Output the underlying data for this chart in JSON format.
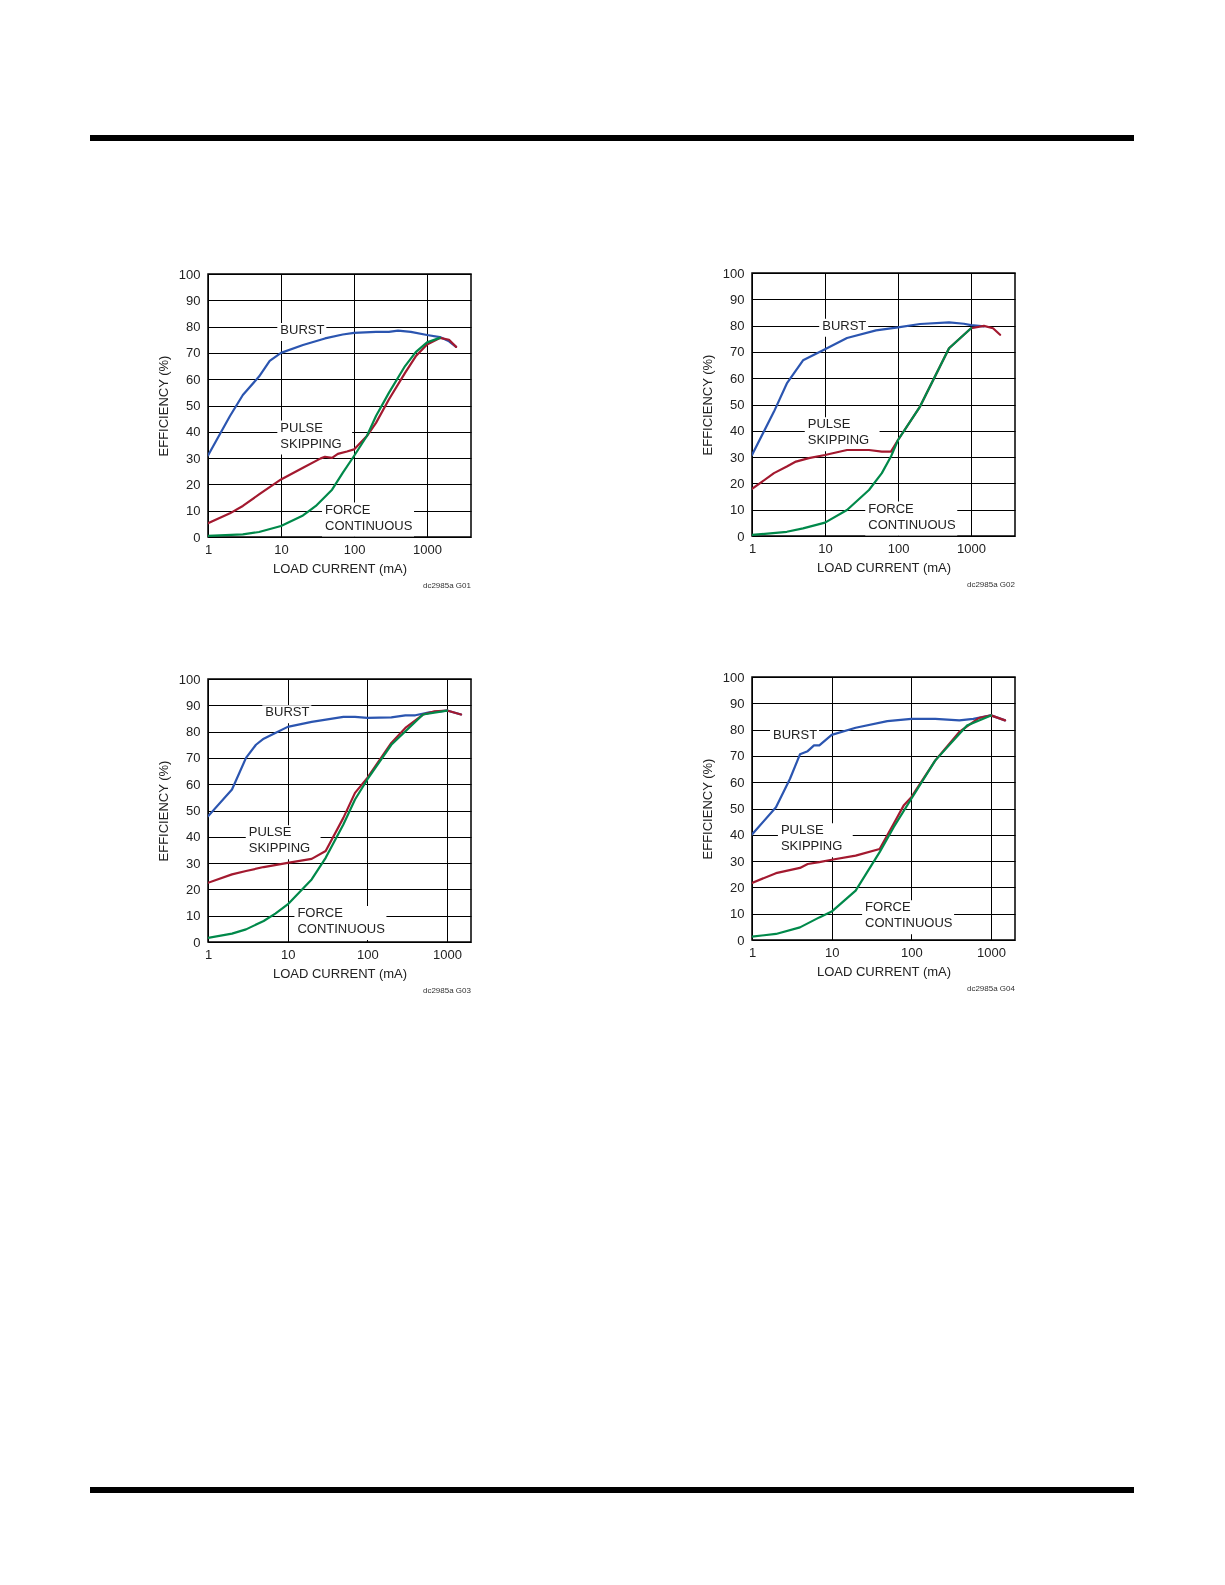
{
  "chart_data": [
    {
      "type": "line",
      "xlabel": "LOAD CURRENT  (mA)",
      "ylabel": "EFFICIENCY (%)",
      "log": "x",
      "grid": true,
      "xlim": [
        1,
        4000
      ],
      "xticks": [
        1,
        10,
        100,
        1000
      ],
      "ylim": [
        0,
        100
      ],
      "yticks": [
        0,
        10,
        20,
        30,
        40,
        50,
        60,
        70,
        80,
        90,
        100
      ],
      "annotations": [
        "dc2985a G01"
      ],
      "series": [
        {
          "name": "BURST",
          "color": "#2b55b0",
          "x": [
            1,
            2,
            3,
            5,
            7,
            10,
            20,
            40,
            70,
            100,
            200,
            300,
            400,
            600,
            1000,
            1500,
            2000,
            2500
          ],
          "values": [
            31,
            46,
            54,
            61,
            67,
            70,
            73,
            75.5,
            77,
            77.6,
            78,
            78,
            78.5,
            78,
            76.8,
            76,
            74.4,
            72.3
          ]
        },
        {
          "name": "PULSE SKIPPING",
          "color": "#a3192f",
          "x": [
            1,
            2,
            3,
            5,
            10,
            20,
            35,
            40,
            50,
            60,
            80,
            100,
            150,
            200,
            300,
            500,
            700,
            1000,
            1500,
            2000,
            2500
          ],
          "values": [
            5.2,
            9,
            11.8,
            16.2,
            21.9,
            26.3,
            29.9,
            30.5,
            30.1,
            31.6,
            32.5,
            33.3,
            38.4,
            43.4,
            52.3,
            62.4,
            68.7,
            73.2,
            75.7,
            75,
            72.3
          ]
        },
        {
          "name": "FORCE CONTINUOUS",
          "color": "#00894a",
          "x": [
            1,
            3,
            5,
            10,
            20,
            30,
            50,
            70,
            100,
            150,
            200,
            300,
            500,
            700,
            1000,
            1500
          ],
          "values": [
            0.4,
            1,
            1.9,
            4.2,
            8.2,
            11.8,
            18,
            24.4,
            30.8,
            38.4,
            46,
            54.8,
            65,
            70.3,
            74,
            75.7
          ]
        }
      ]
    },
    {
      "type": "line",
      "xlabel": "LOAD CURRENT  (mA)",
      "ylabel": "EFFICIENCY (%)",
      "log": "x",
      "grid": true,
      "xlim": [
        1,
        4000
      ],
      "xticks": [
        1,
        10,
        100,
        1000
      ],
      "ylim": [
        0,
        100
      ],
      "yticks": [
        0,
        10,
        20,
        30,
        40,
        50,
        60,
        70,
        80,
        90,
        100
      ],
      "annotations": [
        "dc2985a G02"
      ],
      "series": [
        {
          "name": "BURST",
          "color": "#2b55b0",
          "x": [
            1,
            2,
            3,
            5,
            10,
            20,
            50,
            100,
            200,
            500,
            800,
            1000,
            1500
          ],
          "values": [
            30.8,
            47.3,
            58,
            66.8,
            71,
            75.3,
            78.2,
            79.3,
            80.6,
            81.2,
            80.7,
            80.2,
            79.7
          ]
        },
        {
          "name": "PULSE SKIPPING",
          "color": "#a3192f",
          "x": [
            1,
            2,
            3,
            4,
            6,
            10,
            20,
            40,
            60,
            80,
            100,
            200,
            500,
            1000,
            1500,
            2000,
            2500
          ],
          "values": [
            17.9,
            23.9,
            26.4,
            28.3,
            29.6,
            30.8,
            32.7,
            32.7,
            32.1,
            32.1,
            36.5,
            49.2,
            71.4,
            79,
            79.9,
            79,
            76.5
          ]
        },
        {
          "name": "FORCE CONTINUOUS",
          "color": "#00894a",
          "x": [
            1,
            3,
            5,
            10,
            20,
            40,
            60,
            80,
            100,
            200,
            500,
            1000
          ],
          "values": [
            0.4,
            1.6,
            2.9,
            5.1,
            9.9,
            17.5,
            23.9,
            30.2,
            36.5,
            49.2,
            71.4,
            79
          ]
        }
      ]
    },
    {
      "type": "line",
      "xlabel": "LOAD CURRENT  (mA)",
      "ylabel": "EFFICIENCY (%)",
      "log": "x",
      "grid": true,
      "xlim": [
        1,
        2000
      ],
      "xticks": [
        1,
        10,
        100,
        1000
      ],
      "ylim": [
        0,
        100
      ],
      "yticks": [
        0,
        10,
        20,
        30,
        40,
        50,
        60,
        70,
        80,
        90,
        100
      ],
      "annotations": [
        "dc2985a G03"
      ],
      "series": [
        {
          "name": "BURST",
          "color": "#2b55b0",
          "x": [
            1,
            2,
            3,
            4,
            5,
            7,
            10,
            20,
            50,
            70,
            100,
            200,
            300,
            400,
            600,
            1000,
            1500
          ],
          "values": [
            47.8,
            58,
            70,
            75,
            77.3,
            79.5,
            81.8,
            83.7,
            85.6,
            85.6,
            85.2,
            85.4,
            86.2,
            86.2,
            87.3,
            88,
            86.5
          ]
        },
        {
          "name": "PULSE SKIPPING",
          "color": "#a3192f",
          "x": [
            1,
            2,
            3,
            5,
            10,
            20,
            30,
            50,
            70,
            100,
            200,
            300,
            500,
            700,
            1000,
            1500
          ],
          "values": [
            22.5,
            25.7,
            27,
            28.5,
            30.1,
            31.6,
            34.6,
            47.2,
            56.7,
            62.4,
            75.7,
            81.4,
            86.5,
            87.7,
            88,
            86.5
          ]
        },
        {
          "name": "FORCE CONTINUOUS",
          "color": "#00894a",
          "x": [
            1,
            2,
            3,
            5,
            7,
            10,
            20,
            30,
            50,
            70,
            100,
            200,
            500,
            1000
          ],
          "values": [
            1.6,
            3.2,
            4.8,
            8,
            10.8,
            14.3,
            23.8,
            32,
            44.7,
            54.2,
            61.8,
            75,
            86.5,
            88
          ]
        }
      ]
    },
    {
      "type": "line",
      "xlabel": "LOAD CURRENT  (mA)",
      "ylabel": "EFFICIENCY (%)",
      "log": "x",
      "grid": true,
      "xlim": [
        1,
        2000
      ],
      "xticks": [
        1,
        10,
        100,
        1000
      ],
      "ylim": [
        0,
        100
      ],
      "yticks": [
        0,
        10,
        20,
        30,
        40,
        50,
        60,
        70,
        80,
        90,
        100
      ],
      "annotations": [
        "dc2985a G04"
      ],
      "series": [
        {
          "name": "BURST",
          "color": "#2b55b0",
          "x": [
            1,
            2,
            3,
            4,
            5,
            6,
            7,
            10,
            20,
            50,
            100,
            200,
            400,
            600,
            1000,
            1500
          ],
          "values": [
            40.1,
            50.5,
            61.3,
            70.6,
            71.8,
            74,
            74,
            78,
            80.7,
            83.2,
            84.1,
            84.1,
            83.5,
            84.1,
            85.4,
            83.5
          ]
        },
        {
          "name": "PULSE SKIPPING",
          "color": "#a3192f",
          "x": [
            1,
            2,
            4,
            5,
            7,
            10,
            20,
            40,
            60,
            80,
            100,
            200,
            400,
            700,
            1000,
            1500
          ],
          "values": [
            21.7,
            25.4,
            27.4,
            28.9,
            29.6,
            30.5,
            32.1,
            34.6,
            44.2,
            51.1,
            54.3,
            68.3,
            79.1,
            84.4,
            85.4,
            83.5
          ]
        },
        {
          "name": "FORCE CONTINUOUS",
          "color": "#00894a",
          "x": [
            1,
            2,
            4,
            7,
            10,
            20,
            40,
            60,
            100,
            200,
            500,
            1000
          ],
          "values": [
            1.3,
            2.3,
            4.8,
            8.6,
            10.8,
            18.8,
            33.4,
            42.9,
            53.7,
            68.3,
            81.6,
            85.4
          ]
        }
      ]
    }
  ]
}
